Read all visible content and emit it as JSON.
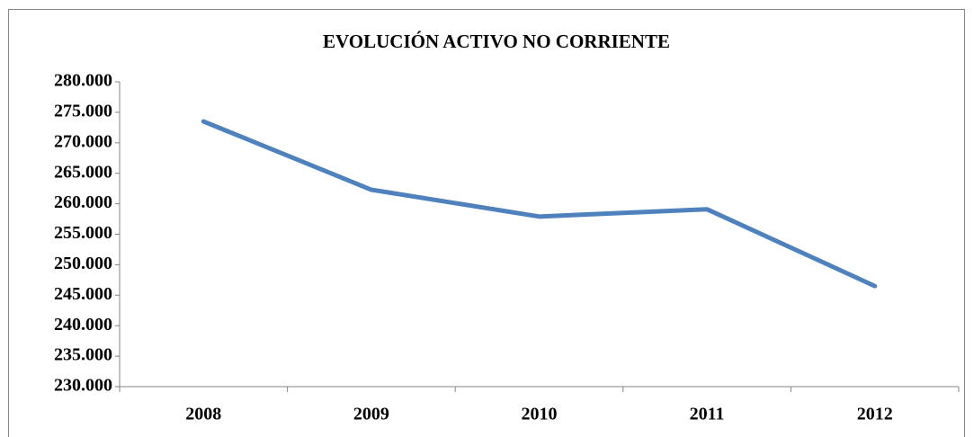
{
  "chart_data": {
    "type": "line",
    "title": "EVOLUCIÓN ACTIVO NO CORRIENTE",
    "categories": [
      "2008",
      "2009",
      "2010",
      "2011",
      "2012"
    ],
    "values": [
      273500,
      262300,
      257900,
      259100,
      246500
    ],
    "color": "#4f81bd",
    "ylim": [
      230000,
      280000
    ],
    "yticks": [
      {
        "value": 230000,
        "label": "230.000"
      },
      {
        "value": 235000,
        "label": "235.000"
      },
      {
        "value": 240000,
        "label": "240.000"
      },
      {
        "value": 245000,
        "label": "245.000"
      },
      {
        "value": 250000,
        "label": "250.000"
      },
      {
        "value": 255000,
        "label": "255.000"
      },
      {
        "value": 260000,
        "label": "260.000"
      },
      {
        "value": 265000,
        "label": "265.000"
      },
      {
        "value": 270000,
        "label": "270.000"
      },
      {
        "value": 275000,
        "label": "275.000"
      },
      {
        "value": 280000,
        "label": "280.000"
      }
    ],
    "grid": false
  }
}
